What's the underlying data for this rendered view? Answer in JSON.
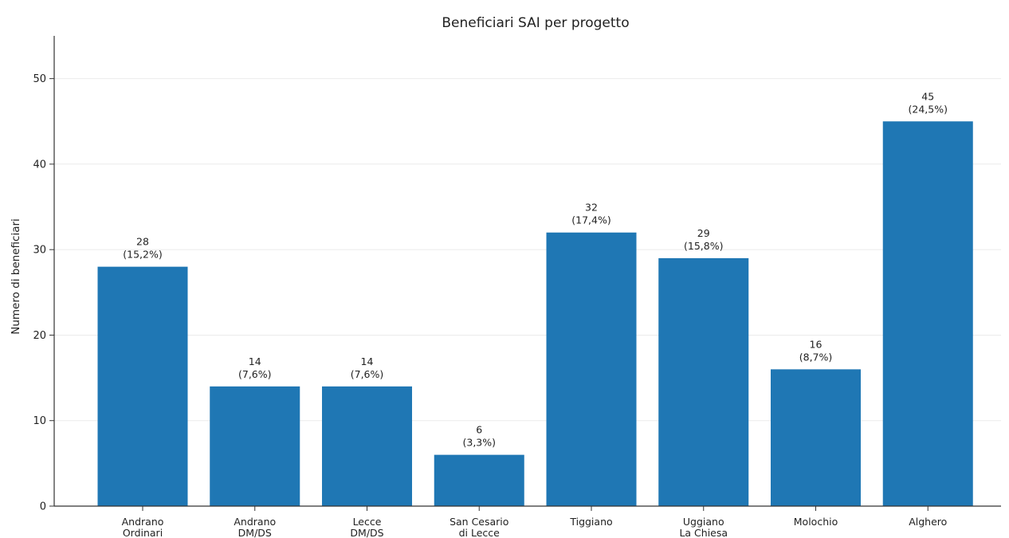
{
  "chart_data": {
    "type": "bar",
    "title": "Beneficiari SAI per progetto",
    "xlabel": "",
    "ylabel": "Numero di beneficiari",
    "ylim": [
      0,
      55
    ],
    "yticks": [
      0,
      10,
      20,
      30,
      40,
      50
    ],
    "grid": "horizontal",
    "color": "#1f77b4",
    "categories": [
      [
        "Andrano",
        "Ordinari"
      ],
      [
        "Andrano",
        "DM/DS"
      ],
      [
        "Lecce",
        "DM/DS"
      ],
      [
        "San Cesario",
        "di Lecce"
      ],
      [
        "Tiggiano"
      ],
      [
        "Uggiano",
        "La Chiesa"
      ],
      [
        "Molochio"
      ],
      [
        "Alghero"
      ]
    ],
    "values": [
      28,
      14,
      14,
      6,
      32,
      29,
      16,
      45
    ],
    "percentages": [
      "(15,2%)",
      "(7,6%)",
      "(7,6%)",
      "(3,3%)",
      "(17,4%)",
      "(15,8%)",
      "(8,7%)",
      "(24,5%)"
    ]
  }
}
